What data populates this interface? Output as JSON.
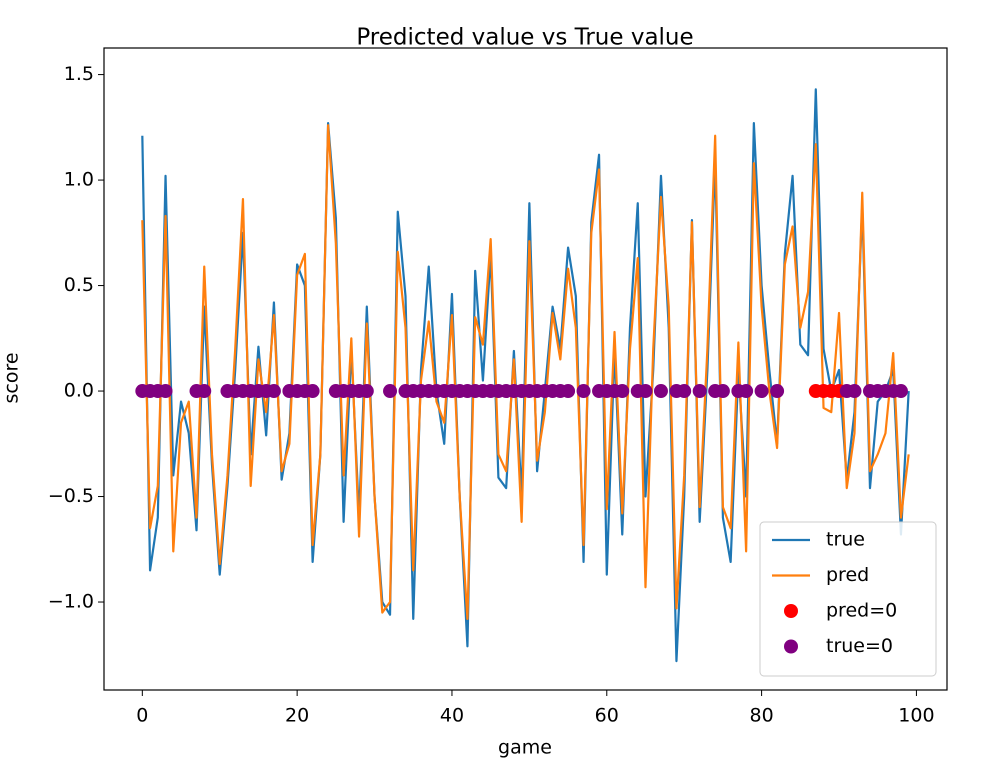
{
  "chart_data": {
    "type": "line",
    "title": "Predicted value vs True value",
    "x_label": "game",
    "y_label": "score",
    "xlim": [
      -4.95,
      103.95
    ],
    "ylim": [
      -1.417,
      1.626
    ],
    "xticks": [
      0,
      20,
      40,
      60,
      80,
      100
    ],
    "yticks": [
      {
        "value": -1.0,
        "label": "−1.0"
      },
      {
        "value": -0.5,
        "label": "−0.5"
      },
      {
        "value": 0.0,
        "label": "0.0"
      },
      {
        "value": 0.5,
        "label": "0.5"
      },
      {
        "value": 1.0,
        "label": "1.0"
      },
      {
        "value": 1.5,
        "label": "1.5"
      }
    ],
    "grid": false,
    "legend": "lower right",
    "series": [
      {
        "name": "true",
        "type": "line",
        "color": "#1f77b4",
        "x": [
          0,
          1,
          2,
          3,
          4,
          5,
          6,
          7,
          8,
          9,
          10,
          11,
          12,
          13,
          14,
          15,
          16,
          17,
          18,
          19,
          20,
          21,
          22,
          23,
          24,
          25,
          26,
          27,
          28,
          29,
          30,
          31,
          32,
          33,
          34,
          35,
          36,
          37,
          38,
          39,
          40,
          41,
          42,
          43,
          44,
          45,
          46,
          47,
          48,
          49,
          50,
          51,
          52,
          53,
          54,
          55,
          56,
          57,
          58,
          59,
          60,
          61,
          62,
          63,
          64,
          65,
          66,
          67,
          68,
          69,
          70,
          71,
          72,
          73,
          74,
          75,
          76,
          77,
          78,
          79,
          80,
          81,
          82,
          83,
          84,
          85,
          86,
          87,
          88,
          89,
          90,
          91,
          92,
          93,
          94,
          95,
          96,
          97,
          98,
          99
        ],
        "values": [
          1.21,
          -0.85,
          -0.6,
          1.02,
          -0.4,
          -0.05,
          -0.2,
          -0.66,
          0.4,
          -0.35,
          -0.87,
          -0.45,
          0.1,
          0.75,
          -0.3,
          0.21,
          -0.21,
          0.42,
          -0.42,
          -0.2,
          0.6,
          0.5,
          -0.81,
          -0.3,
          1.27,
          0.82,
          -0.62,
          0.2,
          -0.6,
          0.4,
          -0.5,
          -1.0,
          -1.06,
          0.85,
          0.45,
          -1.08,
          0.1,
          0.59,
          0.0,
          -0.25,
          0.46,
          -0.5,
          -1.21,
          0.57,
          0.05,
          0.65,
          -0.41,
          -0.46,
          0.19,
          -0.5,
          0.89,
          -0.38,
          0.0,
          0.4,
          0.2,
          0.68,
          0.45,
          -0.81,
          0.8,
          1.12,
          -0.87,
          0.2,
          -0.68,
          0.3,
          0.89,
          -0.5,
          0.1,
          1.02,
          0.3,
          -1.28,
          -0.5,
          0.81,
          -0.62,
          0.1,
          1.1,
          -0.6,
          -0.81,
          0.1,
          -0.5,
          1.27,
          0.5,
          0.1,
          -0.25,
          0.65,
          1.02,
          0.22,
          0.17,
          1.43,
          0.2,
          0.0,
          0.1,
          -0.42,
          -0.1,
          0.88,
          -0.46,
          -0.05,
          0.0,
          0.1,
          -0.68,
          0.0
        ]
      },
      {
        "name": "pred",
        "type": "line",
        "color": "#ff7f0e",
        "x": [
          0,
          1,
          2,
          3,
          4,
          5,
          6,
          7,
          8,
          9,
          10,
          11,
          12,
          13,
          14,
          15,
          16,
          17,
          18,
          19,
          20,
          21,
          22,
          23,
          24,
          25,
          26,
          27,
          28,
          29,
          30,
          31,
          32,
          33,
          34,
          35,
          36,
          37,
          38,
          39,
          40,
          41,
          42,
          43,
          44,
          45,
          46,
          47,
          48,
          49,
          50,
          51,
          52,
          53,
          54,
          55,
          56,
          57,
          58,
          59,
          60,
          61,
          62,
          63,
          64,
          65,
          66,
          67,
          68,
          69,
          70,
          71,
          72,
          73,
          74,
          75,
          76,
          77,
          78,
          79,
          80,
          81,
          82,
          83,
          84,
          85,
          86,
          87,
          88,
          89,
          90,
          91,
          92,
          93,
          94,
          95,
          96,
          97,
          98,
          99
        ],
        "values": [
          0.81,
          -0.65,
          -0.45,
          0.83,
          -0.76,
          -0.15,
          -0.05,
          -0.6,
          0.59,
          -0.3,
          -0.82,
          -0.4,
          0.2,
          0.91,
          -0.45,
          0.15,
          -0.1,
          0.36,
          -0.38,
          -0.25,
          0.55,
          0.65,
          -0.73,
          -0.3,
          1.26,
          0.7,
          -0.4,
          0.25,
          -0.69,
          0.32,
          -0.5,
          -1.05,
          -1.0,
          0.66,
          0.3,
          -0.85,
          0.05,
          0.33,
          -0.05,
          -0.15,
          0.36,
          -0.5,
          -1.08,
          0.35,
          0.22,
          0.72,
          -0.3,
          -0.38,
          0.15,
          -0.62,
          0.71,
          -0.33,
          -0.1,
          0.37,
          0.15,
          0.58,
          0.3,
          -0.73,
          0.75,
          1.05,
          -0.56,
          0.28,
          -0.58,
          0.2,
          0.63,
          -0.93,
          0.2,
          0.92,
          0.4,
          -1.03,
          -0.4,
          0.8,
          -0.55,
          0.2,
          1.21,
          -0.55,
          -0.65,
          0.23,
          -0.76,
          1.08,
          0.4,
          0.0,
          -0.27,
          0.6,
          0.78,
          0.3,
          0.47,
          1.17,
          -0.08,
          -0.1,
          0.37,
          -0.46,
          -0.2,
          0.94,
          -0.38,
          -0.3,
          -0.2,
          0.18,
          -0.6,
          -0.3
        ]
      },
      {
        "name": "pred=0",
        "type": "scatter",
        "color": "red",
        "x": [
          87,
          88,
          89,
          90
        ],
        "values": [
          0,
          0,
          0,
          0
        ]
      },
      {
        "name": "true=0",
        "type": "scatter",
        "color": "purple",
        "x": [
          0,
          1,
          2,
          3,
          7,
          8,
          11,
          12,
          13,
          14,
          15,
          16,
          17,
          19,
          20,
          21,
          22,
          25,
          26,
          27,
          28,
          29,
          32,
          34,
          35,
          36,
          37,
          38,
          39,
          40,
          41,
          42,
          43,
          44,
          45,
          46,
          47,
          48,
          49,
          50,
          51,
          52,
          53,
          54,
          55,
          57,
          59,
          60,
          61,
          62,
          64,
          65,
          67,
          69,
          70,
          72,
          74,
          75,
          77,
          78,
          80,
          82,
          91,
          92,
          94,
          95,
          96,
          97,
          98
        ],
        "values": [
          0,
          0,
          0,
          0,
          0,
          0,
          0,
          0,
          0,
          0,
          0,
          0,
          0,
          0,
          0,
          0,
          0,
          0,
          0,
          0,
          0,
          0,
          0,
          0,
          0,
          0,
          0,
          0,
          0,
          0,
          0,
          0,
          0,
          0,
          0,
          0,
          0,
          0,
          0,
          0,
          0,
          0,
          0,
          0,
          0,
          0,
          0,
          0,
          0,
          0,
          0,
          0,
          0,
          0,
          0,
          0,
          0,
          0,
          0,
          0,
          0,
          0,
          0,
          0,
          0,
          0,
          0,
          0,
          0
        ]
      }
    ]
  }
}
